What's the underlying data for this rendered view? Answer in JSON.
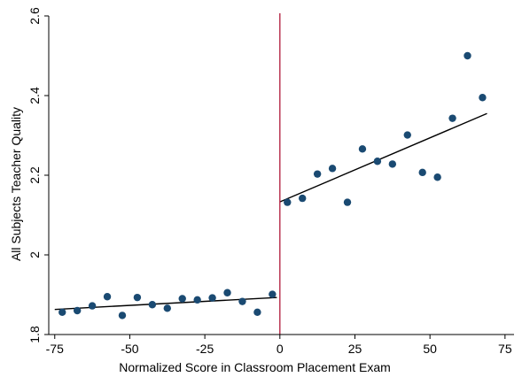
{
  "chart_data": {
    "type": "scatter",
    "title": "",
    "xlabel": "Normalized Score in Classroom Placement Exam",
    "ylabel": "All Subjects Teacher Quality",
    "xlim": [
      -77,
      78
    ],
    "ylim": [
      1.8,
      2.6
    ],
    "xticks": [
      -75,
      -50,
      -25,
      0,
      25,
      50,
      75
    ],
    "yticks": [
      1.8,
      2.0,
      2.2,
      2.4,
      2.6
    ],
    "xtick_labels": [
      "-75",
      "-50",
      "-25",
      "0",
      "25",
      "50",
      "75"
    ],
    "ytick_labels": [
      "1.8",
      "2",
      "2.2",
      "2.4",
      "2.6"
    ],
    "grid": false,
    "cutoff_x": 0,
    "colors": {
      "points": "#1a4a72",
      "fit_line": "#000000",
      "cutoff": "#b0183a",
      "axes": "#000000"
    },
    "points": [
      {
        "x": -72.5,
        "y": 1.856
      },
      {
        "x": -67.5,
        "y": 1.86
      },
      {
        "x": -62.5,
        "y": 1.872
      },
      {
        "x": -57.5,
        "y": 1.895
      },
      {
        "x": -52.5,
        "y": 1.848
      },
      {
        "x": -47.5,
        "y": 1.893
      },
      {
        "x": -42.5,
        "y": 1.875
      },
      {
        "x": -37.5,
        "y": 1.866
      },
      {
        "x": -32.5,
        "y": 1.89
      },
      {
        "x": -27.5,
        "y": 1.887
      },
      {
        "x": -22.5,
        "y": 1.892
      },
      {
        "x": -17.5,
        "y": 1.905
      },
      {
        "x": -12.5,
        "y": 1.883
      },
      {
        "x": -7.5,
        "y": 1.856
      },
      {
        "x": -2.5,
        "y": 1.901
      },
      {
        "x": 2.5,
        "y": 2.132
      },
      {
        "x": 7.5,
        "y": 2.142
      },
      {
        "x": 12.5,
        "y": 2.203
      },
      {
        "x": 17.5,
        "y": 2.217
      },
      {
        "x": 22.5,
        "y": 2.132
      },
      {
        "x": 27.5,
        "y": 2.266
      },
      {
        "x": 32.5,
        "y": 2.235
      },
      {
        "x": 37.5,
        "y": 2.228
      },
      {
        "x": 42.5,
        "y": 2.301
      },
      {
        "x": 47.5,
        "y": 2.207
      },
      {
        "x": 52.5,
        "y": 2.195
      },
      {
        "x": 57.5,
        "y": 2.343
      },
      {
        "x": 62.5,
        "y": 2.5
      },
      {
        "x": 67.5,
        "y": 2.395
      }
    ],
    "fit_lines": [
      {
        "x": [
          -75,
          -1
        ],
        "y": [
          1.863,
          1.893
        ]
      },
      {
        "x": [
          0,
          69
        ],
        "y": [
          2.133,
          2.355
        ]
      }
    ]
  }
}
